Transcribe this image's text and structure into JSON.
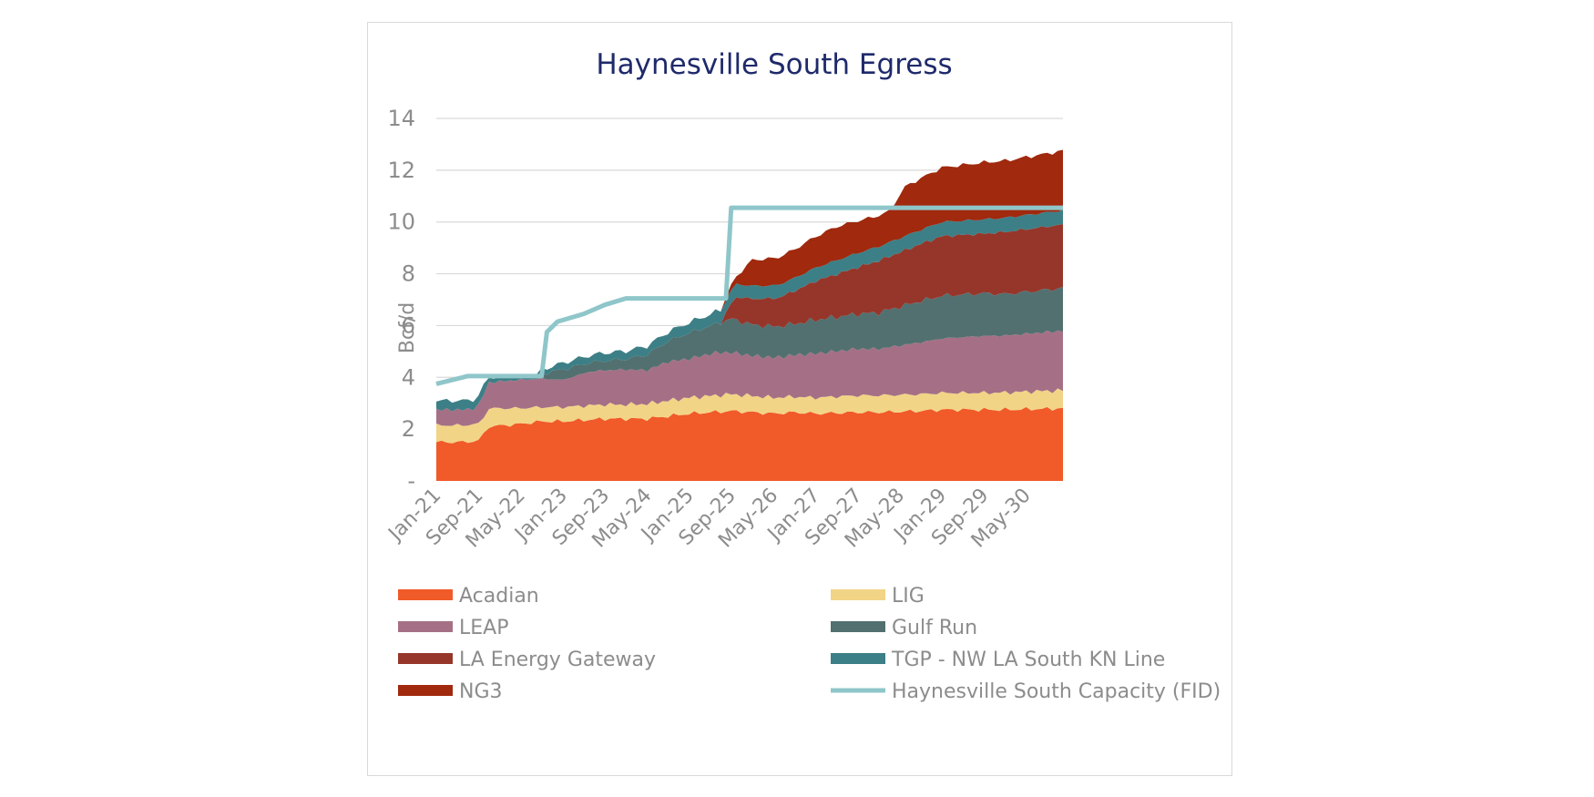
{
  "chart_data": {
    "type": "area",
    "title": "Haynesville South Egress",
    "ylabel": "Bcf/d",
    "xlabel": "",
    "ylim": [
      0,
      14
    ],
    "yticks": [
      0,
      2,
      4,
      6,
      8,
      10,
      12,
      14
    ],
    "ytick_labels": [
      "-",
      "2",
      "4",
      "6",
      "8",
      "10",
      "12",
      "14"
    ],
    "x_start": "2021-01",
    "x_end": "2030-12",
    "x_frequency": "monthly",
    "xtick_labels": [
      "Jan-21",
      "Sep-21",
      "May-22",
      "Jan-23",
      "Sep-23",
      "May-24",
      "Jan-25",
      "Sep-25",
      "May-26",
      "Jan-27",
      "Sep-27",
      "May-28",
      "Jan-29",
      "Sep-29",
      "May-30"
    ],
    "grid": true,
    "legend_position": "bottom",
    "stacked": true,
    "series": [
      {
        "name": "Acadian",
        "color": "#f15a29",
        "points": [
          [
            "2021-01",
            1.5
          ],
          [
            "2021-06",
            1.5
          ],
          [
            "2021-09",
            1.55
          ],
          [
            "2021-11",
            2.1
          ],
          [
            "2022-05",
            2.2
          ],
          [
            "2022-09",
            2.3
          ],
          [
            "2023-01",
            2.3
          ],
          [
            "2023-05",
            2.35
          ],
          [
            "2023-09",
            2.4
          ],
          [
            "2024-01",
            2.4
          ],
          [
            "2024-05",
            2.4
          ],
          [
            "2024-09",
            2.5
          ],
          [
            "2025-01",
            2.6
          ],
          [
            "2025-05",
            2.65
          ],
          [
            "2025-09",
            2.7
          ],
          [
            "2026-01",
            2.65
          ],
          [
            "2026-05",
            2.6
          ],
          [
            "2026-09",
            2.65
          ],
          [
            "2027-01",
            2.6
          ],
          [
            "2027-09",
            2.65
          ],
          [
            "2028-01",
            2.65
          ],
          [
            "2028-09",
            2.7
          ],
          [
            "2029-01",
            2.75
          ],
          [
            "2029-09",
            2.75
          ],
          [
            "2030-01",
            2.75
          ],
          [
            "2030-12",
            2.8
          ]
        ]
      },
      {
        "name": "LIG",
        "color": "#f2d486",
        "points": [
          [
            "2021-01",
            0.65
          ],
          [
            "2021-10",
            0.65
          ],
          [
            "2021-11",
            0.7
          ],
          [
            "2022-09",
            0.55
          ],
          [
            "2023-05",
            0.55
          ],
          [
            "2024-01",
            0.55
          ],
          [
            "2024-09",
            0.6
          ],
          [
            "2025-09",
            0.65
          ],
          [
            "2026-09",
            0.6
          ],
          [
            "2027-09",
            0.65
          ],
          [
            "2028-09",
            0.65
          ],
          [
            "2029-09",
            0.65
          ],
          [
            "2030-12",
            0.7
          ]
        ]
      },
      {
        "name": "LEAP",
        "color": "#a57086",
        "points": [
          [
            "2021-01",
            0.6
          ],
          [
            "2021-08",
            0.6
          ],
          [
            "2021-11",
            1.0
          ],
          [
            "2022-05",
            1.1
          ],
          [
            "2022-09",
            1.1
          ],
          [
            "2023-01",
            1.05
          ],
          [
            "2023-06",
            1.3
          ],
          [
            "2024-01",
            1.35
          ],
          [
            "2024-05",
            1.3
          ],
          [
            "2024-09",
            1.5
          ],
          [
            "2025-01",
            1.5
          ],
          [
            "2025-06",
            1.65
          ],
          [
            "2026-01",
            1.55
          ],
          [
            "2026-06",
            1.55
          ],
          [
            "2027-01",
            1.7
          ],
          [
            "2027-09",
            1.8
          ],
          [
            "2028-01",
            1.8
          ],
          [
            "2028-09",
            2.0
          ],
          [
            "2029-01",
            2.1
          ],
          [
            "2029-09",
            2.2
          ],
          [
            "2030-01",
            2.2
          ],
          [
            "2030-12",
            2.3
          ]
        ]
      },
      {
        "name": "Gulf Run",
        "color": "#527070",
        "points": [
          [
            "2021-01",
            0
          ],
          [
            "2022-08",
            0
          ],
          [
            "2022-09",
            0.2
          ],
          [
            "2023-01",
            0.4
          ],
          [
            "2023-06",
            0.35
          ],
          [
            "2024-01",
            0.4
          ],
          [
            "2024-09",
            0.8
          ],
          [
            "2025-01",
            1.0
          ],
          [
            "2025-06",
            1.1
          ],
          [
            "2025-09",
            1.3
          ],
          [
            "2026-01",
            1.2
          ],
          [
            "2026-09",
            1.2
          ],
          [
            "2027-01",
            1.3
          ],
          [
            "2027-09",
            1.35
          ],
          [
            "2028-01",
            1.4
          ],
          [
            "2028-09",
            1.6
          ],
          [
            "2029-01",
            1.65
          ],
          [
            "2029-09",
            1.65
          ],
          [
            "2030-01",
            1.6
          ],
          [
            "2030-12",
            1.65
          ]
        ]
      },
      {
        "name": "LA Energy Gateway",
        "color": "#96362a",
        "points": [
          [
            "2021-01",
            0
          ],
          [
            "2025-07",
            0
          ],
          [
            "2025-10",
            0.9
          ],
          [
            "2026-01",
            1.0
          ],
          [
            "2026-06",
            1.1
          ],
          [
            "2027-01",
            1.5
          ],
          [
            "2027-09",
            1.8
          ],
          [
            "2028-01",
            2.0
          ],
          [
            "2028-09",
            2.2
          ],
          [
            "2029-01",
            2.3
          ],
          [
            "2029-09",
            2.3
          ],
          [
            "2030-01",
            2.4
          ],
          [
            "2030-12",
            2.45
          ]
        ]
      },
      {
        "name": "TGP - NW LA South KN Line",
        "color": "#3d7f86",
        "points": [
          [
            "2021-01",
            0.35
          ],
          [
            "2021-10",
            0.35
          ],
          [
            "2021-11",
            0.2
          ],
          [
            "2022-09",
            0.15
          ],
          [
            "2023-01",
            0.25
          ],
          [
            "2023-09",
            0.3
          ],
          [
            "2024-09",
            0.35
          ],
          [
            "2025-09",
            0.5
          ],
          [
            "2026-09",
            0.5
          ],
          [
            "2027-09",
            0.55
          ],
          [
            "2028-09",
            0.55
          ],
          [
            "2029-09",
            0.55
          ],
          [
            "2030-12",
            0.55
          ]
        ]
      },
      {
        "name": "NG3",
        "color": "#a0290e",
        "points": [
          [
            "2021-01",
            0
          ],
          [
            "2025-07",
            0
          ],
          [
            "2025-10",
            0.3
          ],
          [
            "2026-01",
            1.0
          ],
          [
            "2026-09",
            1.1
          ],
          [
            "2027-05",
            1.3
          ],
          [
            "2027-12",
            1.2
          ],
          [
            "2028-03",
            1.2
          ],
          [
            "2028-06",
            1.9
          ],
          [
            "2029-01",
            2.1
          ],
          [
            "2029-09",
            2.2
          ],
          [
            "2030-01",
            2.2
          ],
          [
            "2030-12",
            2.3
          ]
        ]
      }
    ],
    "line_series": [
      {
        "name": "Haynesville South Capacity (FID)",
        "color": "#8fc6ca",
        "steps": [
          [
            "2021-01",
            3.75
          ],
          [
            "2021-07",
            4.05
          ],
          [
            "2022-09",
            4.05
          ],
          [
            "2022-10",
            5.75
          ],
          [
            "2022-12",
            6.15
          ],
          [
            "2023-05",
            6.45
          ],
          [
            "2023-09",
            6.8
          ],
          [
            "2024-01",
            7.05
          ],
          [
            "2025-08",
            7.05
          ],
          [
            "2025-09",
            10.55
          ],
          [
            "2030-12",
            10.55
          ]
        ]
      }
    ],
    "legend": [
      "Acadian",
      "LIG",
      "LEAP",
      "Gulf Run",
      "LA Energy Gateway",
      "TGP - NW LA South KN Line",
      "NG3",
      "Haynesville South Capacity (FID)"
    ]
  }
}
